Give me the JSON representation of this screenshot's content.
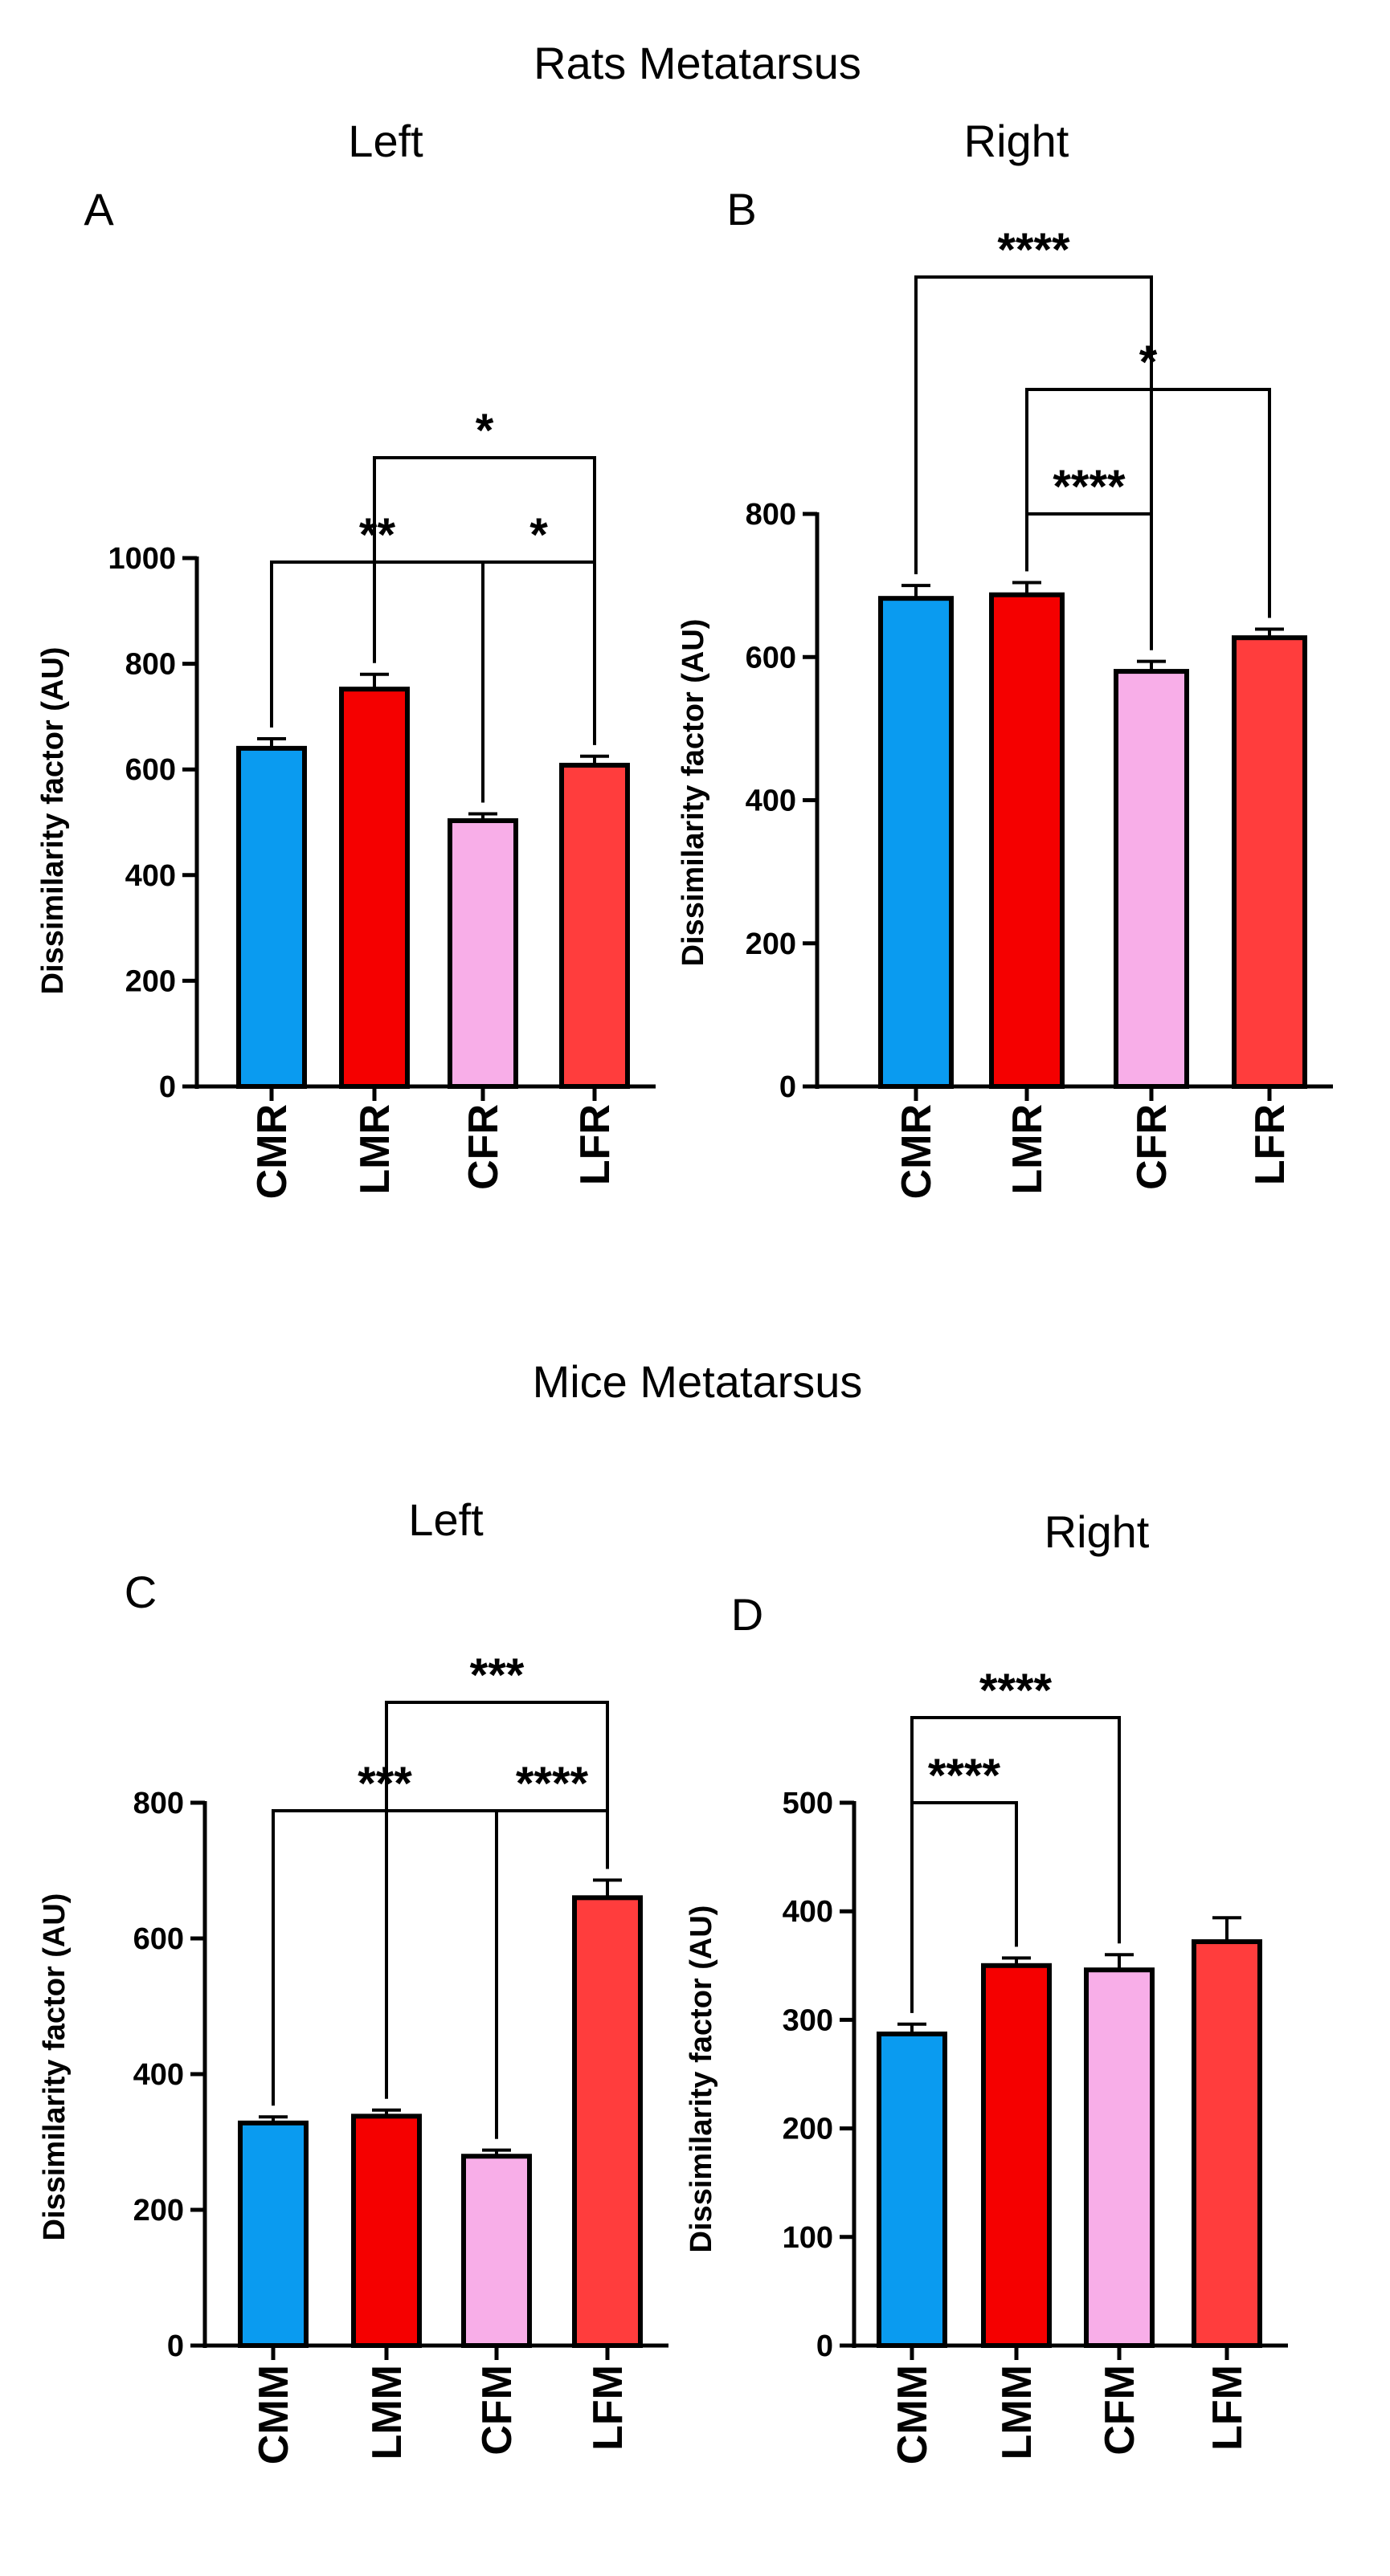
{
  "groups": {
    "rats_title": "Rats Metatarsus",
    "mice_title": "Mice Metatarsus"
  },
  "colors": {
    "control_male": "#0a9bf0",
    "lesion_male": "#f50000",
    "control_female": "#f8aee8",
    "lesion_female": "#ff3d3d",
    "stroke": "#000000"
  },
  "chart_data": [
    {
      "panel": "A",
      "side": "Left",
      "type": "bar",
      "categories": [
        "CMR",
        "LMR",
        "CFR",
        "LFR"
      ],
      "values": [
        640,
        752,
        503,
        608
      ],
      "errors": [
        18,
        28,
        13,
        17
      ],
      "ylabel": "Dissimilarity factor (AU)",
      "ylim": [
        0,
        1000
      ],
      "yticks": [
        0,
        200,
        400,
        600,
        800,
        1000
      ],
      "comparisons": [
        {
          "from": 0,
          "to": 2,
          "level": 0,
          "label": "**"
        },
        {
          "from": 2,
          "to": 3,
          "level": 0,
          "label": "*"
        },
        {
          "from": 1,
          "to": 3,
          "level": 1,
          "label": "*"
        }
      ]
    },
    {
      "panel": "B",
      "side": "Right",
      "type": "bar",
      "categories": [
        "CMR",
        "LMR",
        "CFR",
        "LFR"
      ],
      "values": [
        682,
        687,
        580,
        627
      ],
      "errors": [
        18,
        17,
        14,
        12
      ],
      "ylabel": "Dissimilarity factor (AU)",
      "ylim": [
        0,
        800
      ],
      "yticks": [
        0,
        200,
        400,
        600,
        800
      ],
      "comparisons": [
        {
          "from": 1,
          "to": 2,
          "level": 0,
          "label": "****"
        },
        {
          "from": 1,
          "to": 3,
          "level": 1,
          "label": "*"
        },
        {
          "from": 0,
          "to": 2,
          "level": 2,
          "label": "****"
        }
      ]
    },
    {
      "panel": "C",
      "side": "Left",
      "type": "bar",
      "categories": [
        "CMM",
        "LMM",
        "CFM",
        "LFM"
      ],
      "values": [
        328,
        338,
        279,
        660
      ],
      "errors": [
        9,
        9,
        9,
        26
      ],
      "ylabel": "Dissimilarity factor (AU)",
      "ylim": [
        0,
        800
      ],
      "yticks": [
        0,
        200,
        400,
        600,
        800
      ],
      "comparisons": [
        {
          "from": 0,
          "to": 2,
          "level": 0,
          "label": "***"
        },
        {
          "from": 2,
          "to": 3,
          "level": 0,
          "label": "****"
        },
        {
          "from": 1,
          "to": 3,
          "level": 1,
          "label": "***"
        }
      ]
    },
    {
      "panel": "D",
      "side": "Right",
      "type": "bar",
      "categories": [
        "CMM",
        "LMM",
        "CFM",
        "LFM"
      ],
      "values": [
        287,
        350,
        346,
        372
      ],
      "errors": [
        9,
        7,
        14,
        22
      ],
      "ylabel": "Dissimilarity factor (AU)",
      "ylim": [
        0,
        500
      ],
      "yticks": [
        0,
        100,
        200,
        300,
        400,
        500
      ],
      "comparisons": [
        {
          "from": 0,
          "to": 1,
          "level": 0,
          "label": "****"
        },
        {
          "from": 0,
          "to": 2,
          "level": 1,
          "label": "****"
        }
      ]
    }
  ]
}
